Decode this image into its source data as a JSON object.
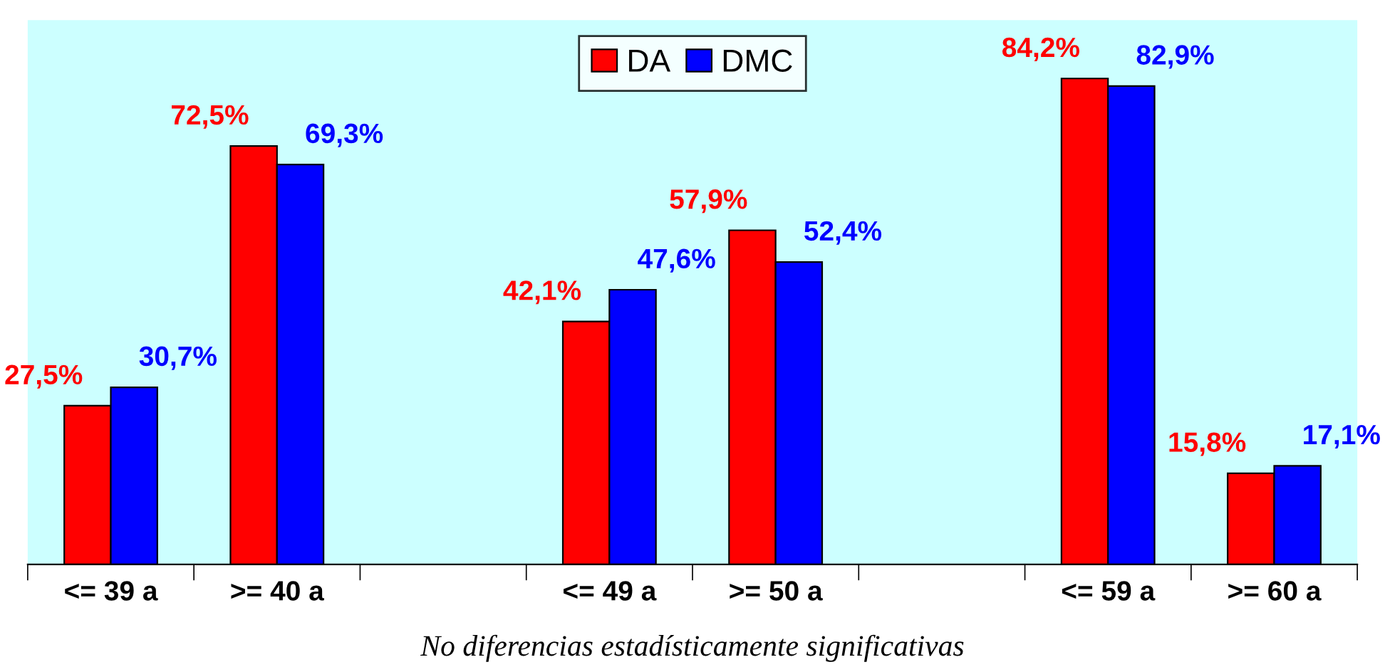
{
  "chart_data": {
    "type": "bar",
    "categories": [
      "<= 39 a",
      ">= 40 a",
      null,
      "<= 49 a",
      ">= 50 a",
      null,
      "<= 59 a",
      ">= 60 a"
    ],
    "series": [
      {
        "name": "DA",
        "color": "#ff0000",
        "values": [
          27.5,
          72.5,
          null,
          42.1,
          57.9,
          null,
          84.2,
          15.8
        ],
        "value_labels": [
          "27,5%",
          "72,5%",
          null,
          "42,1%",
          "57,9%",
          null,
          "84,2%",
          "15,8%"
        ]
      },
      {
        "name": "DMC",
        "color": "#0000ff",
        "values": [
          30.7,
          69.3,
          null,
          47.6,
          52.4,
          null,
          82.9,
          17.1
        ],
        "value_labels": [
          "30,7%",
          "69,3%",
          null,
          "47,6%",
          "52,4%",
          null,
          "82,9%",
          "17,1%"
        ]
      }
    ],
    "tick_labels": "x",
    "legend": "top",
    "grid": false,
    "annotations": [
      "No diferencias estadísticamente significativas"
    ]
  }
}
